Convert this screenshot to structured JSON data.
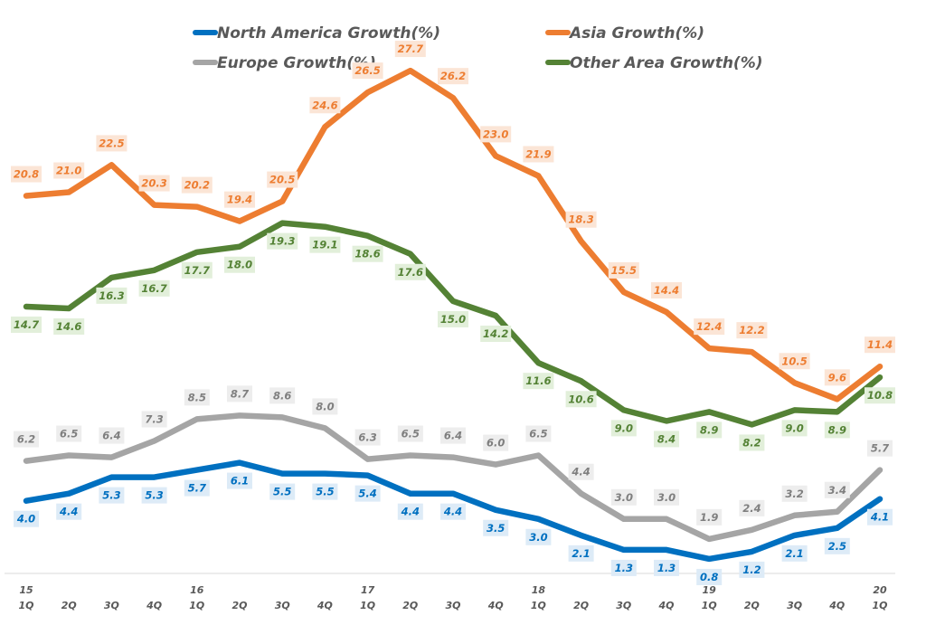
{
  "chart_data": {
    "type": "line",
    "title": "",
    "xlabel": "",
    "ylabel": "",
    "ylim": [
      0,
      30
    ],
    "grid": false,
    "legend_position": "top",
    "x": [
      "15 1Q",
      "2Q",
      "3Q",
      "4Q",
      "16 1Q",
      "2Q",
      "3Q",
      "4Q",
      "17 1Q",
      "2Q",
      "3Q",
      "4Q",
      "18 1Q",
      "2Q",
      "3Q",
      "4Q",
      "19 1Q",
      "2Q",
      "3Q",
      "4Q",
      "20 1Q"
    ],
    "x_tick_year": [
      "15",
      "",
      "",
      "",
      "16",
      "",
      "",
      "",
      "17",
      "",
      "",
      "",
      "18",
      "",
      "",
      "",
      "19",
      "",
      "",
      "",
      "20"
    ],
    "x_tick_quarter": [
      "1Q",
      "2Q",
      "3Q",
      "4Q",
      "1Q",
      "2Q",
      "3Q",
      "4Q",
      "1Q",
      "2Q",
      "3Q",
      "4Q",
      "1Q",
      "2Q",
      "3Q",
      "4Q",
      "1Q",
      "2Q",
      "3Q",
      "4Q",
      "1Q"
    ],
    "series": [
      {
        "name": "North America Growth(%)",
        "color": "#0070c0",
        "label_bg": "#ddebf7",
        "label_color": "#0070c0",
        "label_position": "below",
        "values": [
          4.0,
          4.4,
          5.3,
          5.3,
          5.7,
          6.1,
          5.5,
          5.5,
          5.4,
          4.4,
          4.4,
          3.5,
          3.0,
          2.1,
          1.3,
          1.3,
          0.8,
          1.2,
          2.1,
          2.5,
          4.1
        ]
      },
      {
        "name": "Asia Growth(%)",
        "color": "#ed7d31",
        "label_bg": "#fbe5d6",
        "label_color": "#ed7d31",
        "label_position": "above",
        "values": [
          20.8,
          21.0,
          22.5,
          20.3,
          20.2,
          19.4,
          20.5,
          24.6,
          26.5,
          27.7,
          26.2,
          23.0,
          21.9,
          18.3,
          15.5,
          14.4,
          12.4,
          12.2,
          10.5,
          9.6,
          11.4
        ]
      },
      {
        "name": "Europe Growth(%)",
        "color": "#a5a5a5",
        "label_bg": "#ededed",
        "label_color": "#7f7f7f",
        "label_position": "above",
        "values": [
          6.2,
          6.5,
          6.4,
          7.3,
          8.5,
          8.7,
          8.6,
          8.0,
          6.3,
          6.5,
          6.4,
          6.0,
          6.5,
          4.4,
          3.0,
          3.0,
          1.9,
          2.4,
          3.2,
          3.4,
          5.7
        ]
      },
      {
        "name": "Other Area Growth(%)",
        "color": "#548235",
        "label_bg": "#e2efda",
        "label_color": "#548235",
        "label_position": "below",
        "values": [
          14.7,
          14.6,
          16.3,
          16.7,
          17.7,
          18.0,
          19.3,
          19.1,
          18.6,
          17.6,
          15.0,
          14.2,
          11.6,
          10.6,
          9.0,
          8.4,
          8.9,
          8.2,
          9.0,
          8.9,
          10.8
        ]
      }
    ]
  }
}
